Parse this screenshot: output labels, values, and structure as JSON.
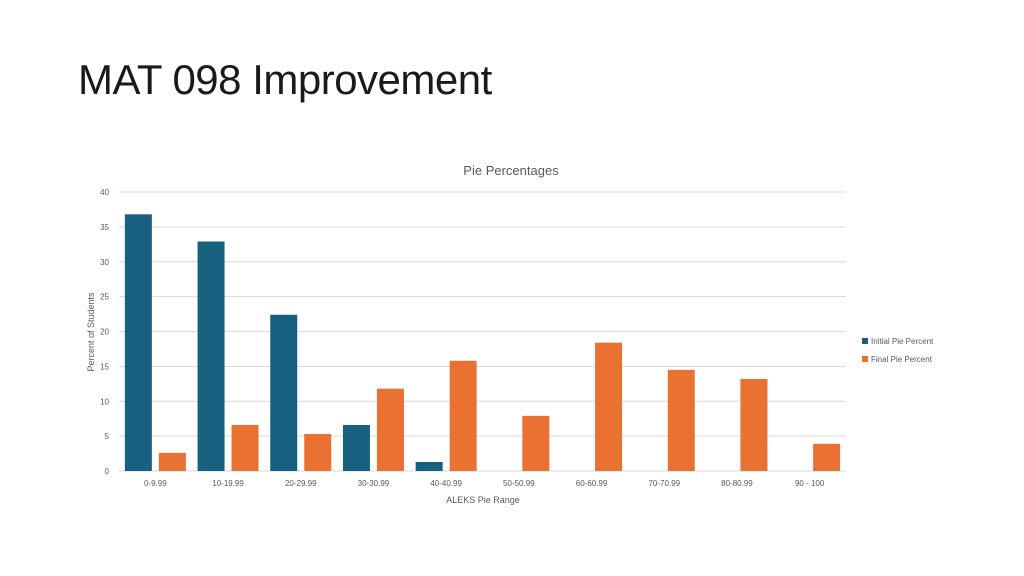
{
  "slide": {
    "title": "MAT 098 Improvement"
  },
  "colors": {
    "initial": "#17607f",
    "final": "#e97132",
    "grid": "#d9d9d9",
    "text": "#595959"
  },
  "chart_data": {
    "type": "bar",
    "title": "Pie Percentages",
    "xlabel": "ALEKS Pie Range",
    "ylabel": "Percent of Students",
    "categories": [
      "0-9.99",
      "10-19.99",
      "20-29.99",
      "30-30.99",
      "40-40.99",
      "50-50.99",
      "60-60.99",
      "70-70.99",
      "80-80.99",
      "90 - 100"
    ],
    "series": [
      {
        "name": "Initial Pie Percent",
        "values": [
          36.8,
          32.9,
          22.4,
          6.6,
          1.3,
          0,
          0,
          0,
          0,
          0
        ]
      },
      {
        "name": "Final Pie Percent",
        "values": [
          2.6,
          6.6,
          5.3,
          11.8,
          15.8,
          7.9,
          18.4,
          14.5,
          13.2,
          3.9
        ]
      }
    ],
    "yticks": [
      0,
      5,
      10,
      15,
      20,
      25,
      30,
      35,
      40
    ],
    "ylim": [
      0,
      40
    ],
    "grid": true,
    "legend": "right"
  }
}
